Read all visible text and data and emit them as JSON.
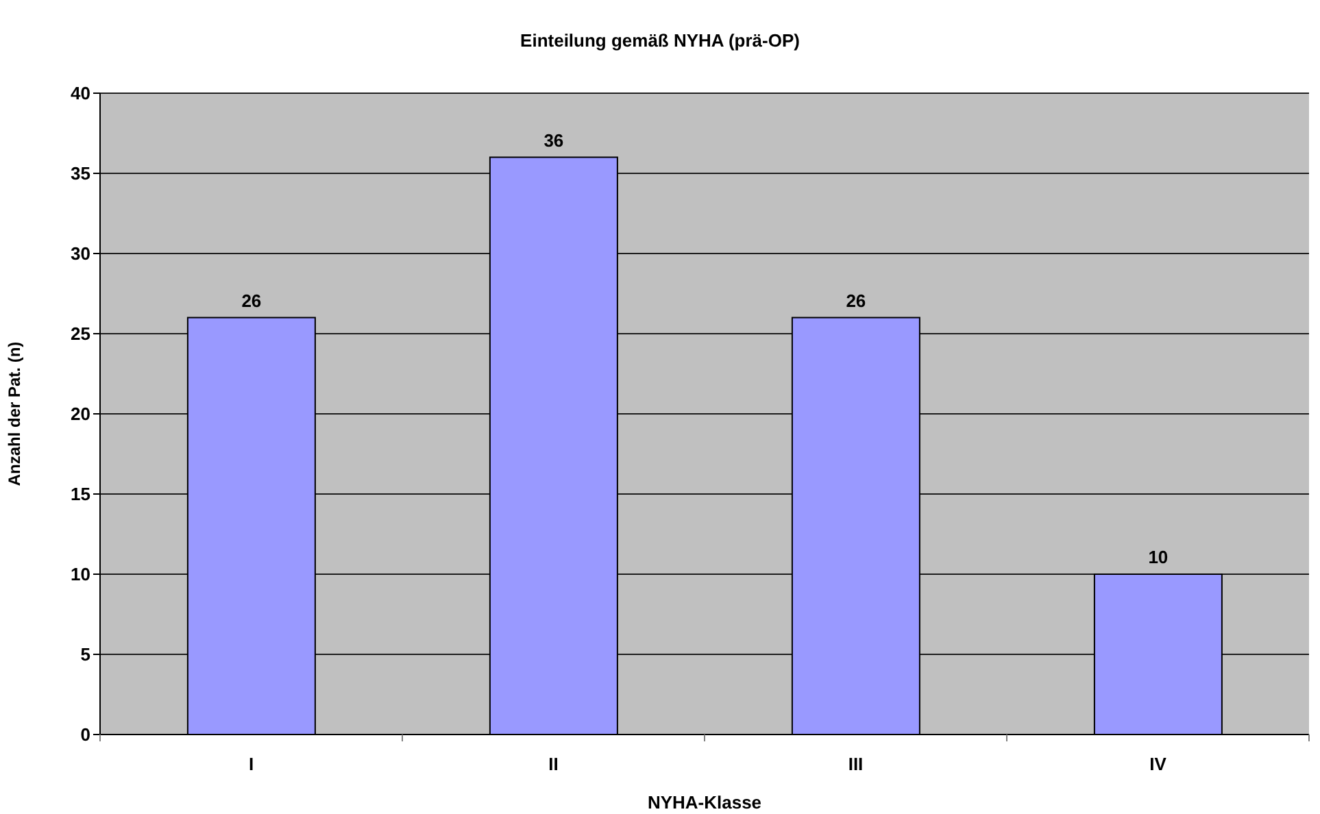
{
  "chart_data": {
    "type": "bar",
    "title": "Einteilung gemäß NYHA (prä-OP)",
    "xlabel": "NYHA-Klasse",
    "ylabel": "Anzahl der Pat. (n)",
    "categories": [
      "I",
      "II",
      "III",
      "IV"
    ],
    "values": [
      26,
      36,
      26,
      10
    ],
    "color": "#9999ff",
    "ylim": [
      0,
      40
    ],
    "yticks": [
      0,
      5,
      10,
      15,
      20,
      25,
      30,
      35,
      40
    ],
    "grid": "y",
    "data_labels": true
  }
}
